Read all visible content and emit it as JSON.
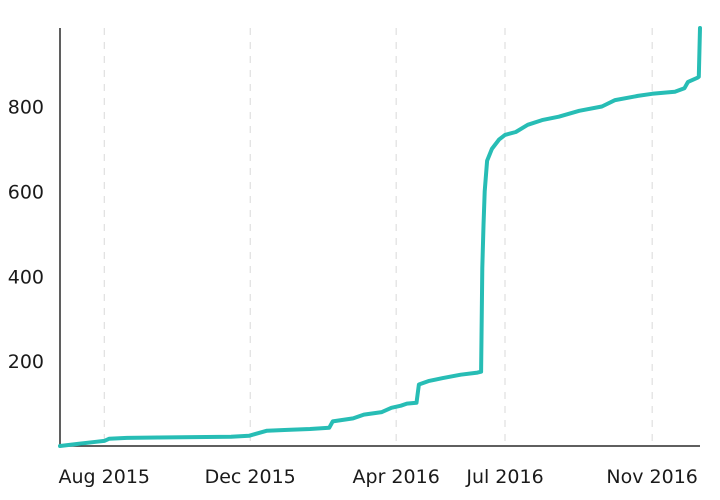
{
  "chart_data": {
    "type": "line",
    "title": "",
    "xlabel": "",
    "ylabel": "",
    "grid": {
      "x": true,
      "y": false,
      "style": "dashed"
    },
    "xlim": [
      "2015-06-25",
      "2016-12-11"
    ],
    "ylim": [
      0,
      985
    ],
    "x_ticks": [
      {
        "date": "2015-08-01",
        "label": "Aug 2015"
      },
      {
        "date": "2015-12-01",
        "label": "Dec 2015"
      },
      {
        "date": "2016-04-01",
        "label": "Apr 2016"
      },
      {
        "date": "2016-07-01",
        "label": "Jul 2016"
      },
      {
        "date": "2016-11-01",
        "label": "Nov 2016"
      }
    ],
    "y_ticks": [
      {
        "value": 200,
        "label": "200"
      },
      {
        "value": 400,
        "label": "400"
      },
      {
        "value": 600,
        "label": "600"
      },
      {
        "value": 800,
        "label": "800"
      }
    ],
    "series": [
      {
        "color": "#27bdb5",
        "points": [
          [
            "2015-06-25",
            0
          ],
          [
            "2015-07-10",
            5
          ],
          [
            "2015-07-25",
            10
          ],
          [
            "2015-08-01",
            12
          ],
          [
            "2015-08-05",
            17
          ],
          [
            "2015-08-20",
            19
          ],
          [
            "2015-09-15",
            20
          ],
          [
            "2015-10-15",
            21
          ],
          [
            "2015-11-15",
            22
          ],
          [
            "2015-11-30",
            24
          ],
          [
            "2015-12-05",
            28
          ],
          [
            "2015-12-15",
            36
          ],
          [
            "2016-01-01",
            38
          ],
          [
            "2016-01-20",
            40
          ],
          [
            "2016-02-05",
            43
          ],
          [
            "2016-02-08",
            58
          ],
          [
            "2016-02-25",
            65
          ],
          [
            "2016-03-05",
            74
          ],
          [
            "2016-03-20",
            80
          ],
          [
            "2016-03-28",
            90
          ],
          [
            "2016-04-05",
            95
          ],
          [
            "2016-04-10",
            100
          ],
          [
            "2016-04-18",
            102
          ],
          [
            "2016-04-20",
            145
          ],
          [
            "2016-04-28",
            153
          ],
          [
            "2016-05-10",
            160
          ],
          [
            "2016-05-25",
            168
          ],
          [
            "2016-06-08",
            173
          ],
          [
            "2016-06-11",
            175
          ],
          [
            "2016-06-12",
            420
          ],
          [
            "2016-06-13",
            520
          ],
          [
            "2016-06-14",
            600
          ],
          [
            "2016-06-16",
            672
          ],
          [
            "2016-06-20",
            700
          ],
          [
            "2016-06-26",
            722
          ],
          [
            "2016-07-01",
            733
          ],
          [
            "2016-07-10",
            740
          ],
          [
            "2016-07-20",
            757
          ],
          [
            "2016-08-01",
            768
          ],
          [
            "2016-08-15",
            776
          ],
          [
            "2016-09-01",
            790
          ],
          [
            "2016-09-20",
            800
          ],
          [
            "2016-10-01",
            815
          ],
          [
            "2016-10-20",
            825
          ],
          [
            "2016-11-01",
            830
          ],
          [
            "2016-11-20",
            835
          ],
          [
            "2016-11-28",
            843
          ],
          [
            "2016-12-01",
            858
          ],
          [
            "2016-12-09",
            868
          ],
          [
            "2016-12-10",
            870
          ],
          [
            "2016-12-11",
            985
          ]
        ]
      }
    ]
  }
}
